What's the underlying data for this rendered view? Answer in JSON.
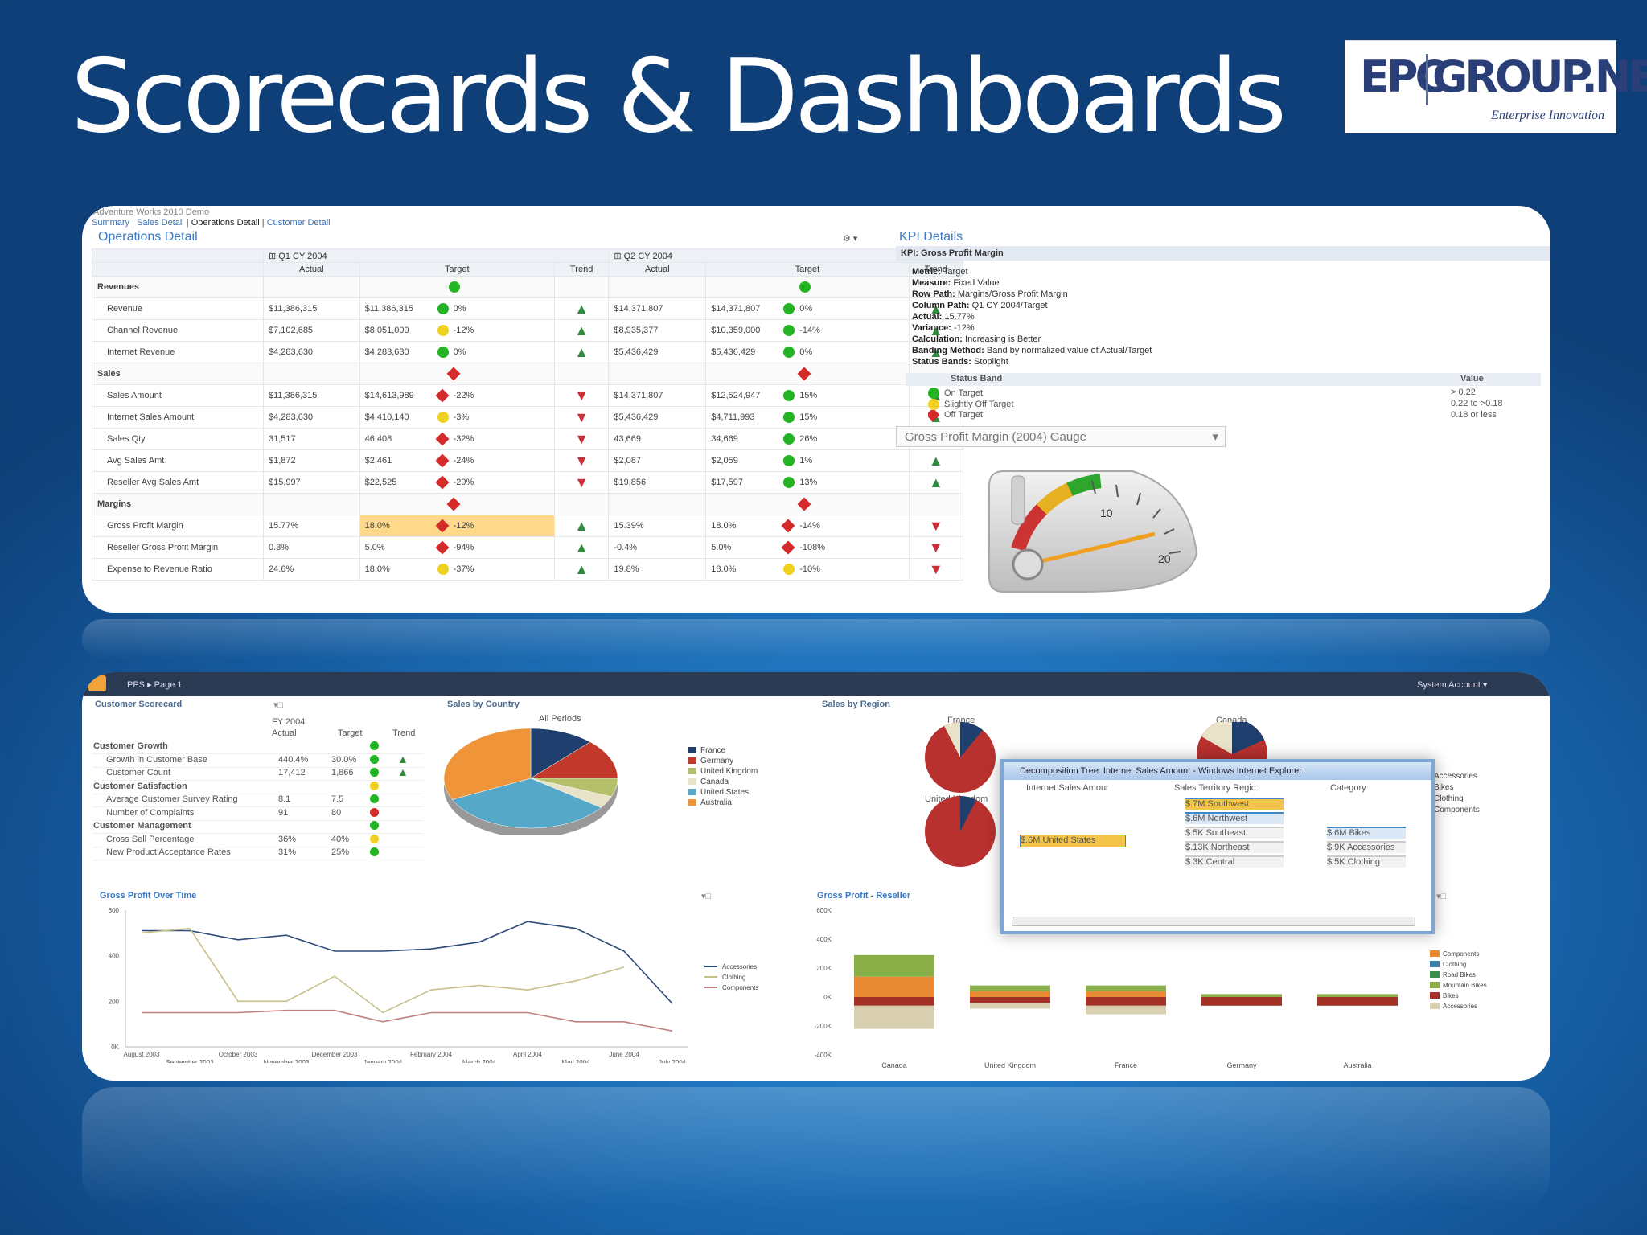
{
  "slide": {
    "title": "Scorecards & Dashboards",
    "logo": {
      "left": "EPC",
      "right": "GROUP.NET",
      "tagline": "Enterprise Innovation"
    }
  },
  "scorecard": {
    "site": "Adventure Works 2010 Demo",
    "breadcrumb": [
      "Summary",
      "Sales Detail",
      "Operations Detail",
      "Customer Detail"
    ],
    "title": "Operations Detail",
    "period1": "Q1 CY 2004",
    "period2": "Q2 CY 2004",
    "columns": [
      "Actual",
      "Target",
      "Trend",
      "Actual",
      "Target",
      "Trend"
    ],
    "groups": [
      {
        "name": "Revenues",
        "rows": [
          {
            "label": "Revenue",
            "a1": "$11,386,315",
            "t1": "$11,386,315",
            "s1": "g",
            "p1": "0%",
            "tr1": "up",
            "a2": "$14,371,807",
            "t2": "$14,371,807",
            "s2": "g",
            "p2": "0%",
            "tr2": "up"
          },
          {
            "label": "Channel Revenue",
            "a1": "$7,102,685",
            "t1": "$8,051,000",
            "s1": "y",
            "p1": "-12%",
            "tr1": "up",
            "a2": "$8,935,377",
            "t2": "$10,359,000",
            "s2": "g",
            "p2": "-14%",
            "tr2": "up"
          },
          {
            "label": "Internet Revenue",
            "a1": "$4,283,630",
            "t1": "$4,283,630",
            "s1": "g",
            "p1": "0%",
            "tr1": "up",
            "a2": "$5,436,429",
            "t2": "$5,436,429",
            "s2": "g",
            "p2": "0%",
            "tr2": "up"
          }
        ]
      },
      {
        "name": "Sales",
        "rows": [
          {
            "label": "Sales Amount",
            "a1": "$11,386,315",
            "t1": "$14,613,989",
            "s1": "r",
            "p1": "-22%",
            "tr1": "down",
            "a2": "$14,371,807",
            "t2": "$12,524,947",
            "s2": "g",
            "p2": "15%",
            "tr2": "up"
          },
          {
            "label": "Internet Sales Amount",
            "a1": "$4,283,630",
            "t1": "$4,410,140",
            "s1": "y",
            "p1": "-3%",
            "tr1": "down",
            "a2": "$5,436,429",
            "t2": "$4,711,993",
            "s2": "g",
            "p2": "15%",
            "tr2": "up"
          },
          {
            "label": "Sales Qty",
            "a1": "31,517",
            "t1": "46,408",
            "s1": "r",
            "p1": "-32%",
            "tr1": "down",
            "a2": "43,669",
            "t2": "34,669",
            "s2": "g",
            "p2": "26%",
            "tr2": "up"
          },
          {
            "label": "Avg Sales Amt",
            "a1": "$1,872",
            "t1": "$2,461",
            "s1": "r",
            "p1": "-24%",
            "tr1": "down",
            "a2": "$2,087",
            "t2": "$2,059",
            "s2": "g",
            "p2": "1%",
            "tr2": "up"
          },
          {
            "label": "Reseller Avg Sales Amt",
            "a1": "$15,997",
            "t1": "$22,525",
            "s1": "r",
            "p1": "-29%",
            "tr1": "down",
            "a2": "$19,856",
            "t2": "$17,597",
            "s2": "g",
            "p2": "13%",
            "tr2": "up"
          }
        ]
      },
      {
        "name": "Margins",
        "rows": [
          {
            "label": "Gross Profit Margin",
            "a1": "15.77%",
            "t1": "18.0%",
            "s1": "r",
            "p1": "-12%",
            "tr1": "up",
            "a2": "15.39%",
            "t2": "18.0%",
            "s2": "r",
            "p2": "-14%",
            "tr2": "down"
          },
          {
            "label": "Reseller Gross Profit Margin",
            "a1": "0.3%",
            "t1": "5.0%",
            "s1": "r",
            "p1": "-94%",
            "tr1": "up",
            "a2": "-0.4%",
            "t2": "5.0%",
            "s2": "r",
            "p2": "-108%",
            "tr2": "down"
          },
          {
            "label": "Expense to Revenue Ratio",
            "a1": "24.6%",
            "t1": "18.0%",
            "s1": "y",
            "p1": "-37%",
            "tr1": "up",
            "a2": "19.8%",
            "t2": "18.0%",
            "s2": "y",
            "p2": "-10%",
            "tr2": "down"
          }
        ]
      }
    ]
  },
  "kpi": {
    "title": "KPI Details",
    "header": "KPI: Gross Profit Margin",
    "fields": [
      {
        "k": "Metric:",
        "v": "Target"
      },
      {
        "k": "Measure:",
        "v": "Fixed Value"
      },
      {
        "k": "Row Path:",
        "v": "Margins/Gross Profit Margin"
      },
      {
        "k": "Column Path:",
        "v": "Q1 CY 2004/Target"
      },
      {
        "k": "Actual:",
        "v": "15.77%"
      },
      {
        "k": "Variance:",
        "v": "-12%"
      },
      {
        "k": "Calculation:",
        "v": "Increasing is Better"
      },
      {
        "k": "Banding Method:",
        "v": "Band by normalized value of Actual/Target"
      },
      {
        "k": "Status Bands:",
        "v": "Stoplight"
      }
    ],
    "bands_header": [
      "Status Band",
      "Value"
    ],
    "bands": [
      {
        "name": "On Target",
        "value": "> 0.22",
        "color": "g"
      },
      {
        "name": "Slightly Off Target",
        "value": "0.22 to >0.18",
        "color": "y"
      },
      {
        "name": "Off Target",
        "value": "0.18 or less",
        "color": "r"
      }
    ],
    "gauge_select": "Gross Profit Margin (2004) Gauge",
    "gauge_ticks": [
      "10",
      "20"
    ]
  },
  "dashboard": {
    "header": {
      "crumb": "PPS ▸ Page 1",
      "user": "System Account ▾"
    },
    "customer_scorecard": {
      "title": "Customer Scorecard",
      "period": "FY 2004",
      "cols": [
        "Actual",
        "Target",
        "Trend"
      ],
      "rows": [
        {
          "label": "Customer Growth",
          "group": true,
          "s": "g"
        },
        {
          "label": "Growth in Customer Base",
          "a": "440.4%",
          "t": "30.0%",
          "s": "g",
          "tr": "up"
        },
        {
          "label": "Customer Count",
          "a": "17,412",
          "t": "1,866",
          "s": "g",
          "tr": "up"
        },
        {
          "label": "Customer Satisfaction",
          "group": true,
          "s": "y"
        },
        {
          "label": "Average Customer Survey Rating",
          "a": "8.1",
          "t": "7.5",
          "s": "g"
        },
        {
          "label": "Number of Complaints",
          "a": "91",
          "t": "80",
          "s": "r"
        },
        {
          "label": "Customer Management",
          "group": true,
          "s": "g"
        },
        {
          "label": "Cross Sell Percentage",
          "a": "36%",
          "t": "40%",
          "s": "y"
        },
        {
          "label": "New Product Acceptance Rates",
          "a": "31%",
          "t": "25%",
          "s": "g"
        }
      ]
    },
    "sales_by_country": {
      "title": "Sales by Country",
      "subtitle": "All Periods"
    },
    "sales_by_region": {
      "title": "Sales by Region",
      "labels": [
        "France",
        "Canada",
        "United Kingdom"
      ]
    },
    "gross_profit_time": {
      "title": "Gross Profit Over Time"
    },
    "gross_profit_reseller": {
      "title": "Gross Profit - Reseller"
    },
    "decomp": {
      "title": "Decomposition Tree: Internet Sales Amount - Windows Internet Explorer",
      "cols": [
        "Internet Sales Amour",
        "Sales Territory Regic",
        "Category"
      ],
      "root": "$.6M United States",
      "regions": [
        "$.7M Southwest",
        "$.6M Northwest",
        "$.5K Southeast",
        "$.13K Northeast",
        "$.3K Central"
      ],
      "cats": [
        "$.6M Bikes",
        "$.9K Accessories",
        "$.5K Clothing"
      ]
    }
  },
  "chart_data": [
    {
      "type": "pie",
      "title": "Sales by Country",
      "subtitle": "All Periods",
      "categories": [
        "France",
        "Germany",
        "United Kingdom",
        "Canada",
        "United States",
        "Australia"
      ],
      "values": [
        12,
        13,
        6,
        4,
        33,
        32
      ],
      "colors": [
        "#1f3f6e",
        "#c0392b",
        "#b5c06a",
        "#e8e2c8",
        "#56a8c8",
        "#f0943a"
      ],
      "legend": "right"
    },
    {
      "type": "line",
      "title": "Gross Profit Over Time",
      "x": [
        "August 2003",
        "September 2003",
        "October 2003",
        "November 2003",
        "December 2003",
        "January 2004",
        "February 2004",
        "March 2004",
        "April 2004",
        "May 2004",
        "June 2004",
        "July 2004"
      ],
      "series": [
        {
          "name": "Accessories",
          "color": "#2e4a78",
          "values": [
            510,
            510,
            470,
            490,
            420,
            420,
            430,
            460,
            550,
            520,
            420,
            190
          ]
        },
        {
          "name": "Clothing",
          "color": "#c8c08a",
          "values": [
            500,
            520,
            200,
            200,
            310,
            150,
            250,
            270,
            250,
            290,
            350,
            null
          ]
        },
        {
          "name": "Components",
          "color": "#c08080",
          "values": [
            150,
            150,
            150,
            160,
            160,
            110,
            150,
            150,
            150,
            110,
            110,
            70
          ]
        }
      ],
      "ylabels": [
        "0K",
        "200",
        "400",
        "600"
      ],
      "ylim": [
        0,
        600
      ],
      "legend": "right"
    },
    {
      "type": "bar",
      "title": "Gross Profit - Reseller",
      "categories": [
        "Canada",
        "United Kingdom",
        "France",
        "Germany",
        "Australia"
      ],
      "series": [
        {
          "name": "Components",
          "color": "#e98a35",
          "values": [
            140,
            40,
            40,
            0,
            0
          ]
        },
        {
          "name": "Clothing",
          "color": "#3b7ea8",
          "values": [
            0,
            0,
            0,
            0,
            0
          ]
        },
        {
          "name": "Road Bikes",
          "color": "#3a8a4a",
          "values": [
            0,
            0,
            0,
            0,
            0
          ]
        },
        {
          "name": "Mountain Bikes",
          "color": "#8aae48",
          "values": [
            150,
            40,
            40,
            20,
            20
          ]
        },
        {
          "name": "Bikes",
          "color": "#a43128",
          "values": [
            -60,
            -40,
            -60,
            -60,
            -60
          ]
        },
        {
          "name": "Accessories",
          "color": "#d8d0b0",
          "values": [
            -160,
            -40,
            -60,
            0,
            0
          ]
        }
      ],
      "ylabels": [
        "-400K",
        "-200K",
        "0K",
        "200K",
        "400K",
        "600K"
      ],
      "ylim": [
        -400,
        600
      ],
      "legend": "right"
    }
  ]
}
